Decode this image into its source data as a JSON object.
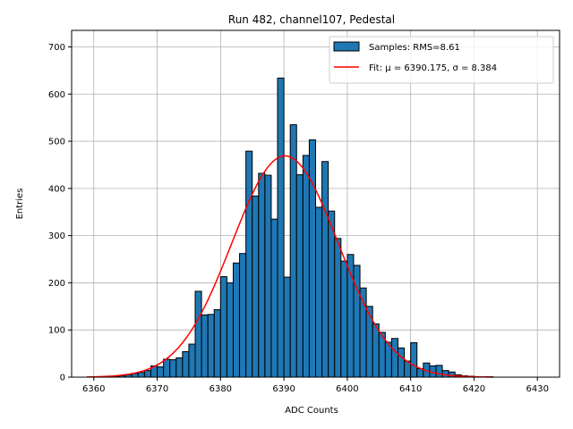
{
  "chart_data": {
    "type": "bar",
    "title": "Run 482, channel107, Pedestal",
    "xlabel": "ADC Counts",
    "ylabel": "Entries",
    "xlim": [
      6356.5,
      6433.5
    ],
    "ylim": [
      0,
      735
    ],
    "x_ticks": [
      6360,
      6370,
      6380,
      6390,
      6400,
      6410,
      6420,
      6430
    ],
    "y_ticks": [
      0,
      100,
      200,
      300,
      400,
      500,
      600,
      700
    ],
    "grid": true,
    "legend_position": "top-right",
    "bin_width": 1,
    "series": [
      {
        "name": "Samples: RMS=8.61",
        "kind": "histogram",
        "color": "#1f77b4",
        "bins": [
          6359,
          6360,
          6361,
          6362,
          6363,
          6364,
          6365,
          6366,
          6367,
          6368,
          6369,
          6370,
          6371,
          6372,
          6373,
          6374,
          6375,
          6376,
          6377,
          6378,
          6379,
          6380,
          6381,
          6382,
          6383,
          6384,
          6385,
          6386,
          6387,
          6388,
          6389,
          6390,
          6391,
          6392,
          6393,
          6394,
          6395,
          6396,
          6397,
          6398,
          6399,
          6400,
          6401,
          6402,
          6403,
          6404,
          6405,
          6406,
          6407,
          6408,
          6409,
          6410,
          6411,
          6412,
          6413,
          6414,
          6415,
          6416,
          6417,
          6418,
          6419,
          6420,
          6421,
          6422
        ],
        "values": [
          1,
          0,
          1,
          2,
          2,
          3,
          5,
          8,
          10,
          14,
          24,
          22,
          38,
          37,
          41,
          54,
          70,
          182,
          132,
          133,
          143,
          213,
          200,
          242,
          262,
          479,
          384,
          432,
          428,
          335,
          634,
          212,
          535,
          429,
          470,
          503,
          360,
          457,
          352,
          294,
          246,
          260,
          237,
          189,
          150,
          113,
          95,
          74,
          82,
          62,
          34,
          73,
          18,
          30,
          24,
          25,
          14,
          11,
          5,
          3,
          2,
          1,
          1,
          1
        ]
      },
      {
        "name": "Fit: μ = 6390.175, σ = 8.384",
        "kind": "gaussian-fit",
        "color": "#ff0000",
        "mu": 6390.175,
        "sigma": 8.384,
        "amplitude": 469,
        "x_range": [
          6359,
          6423
        ]
      }
    ]
  }
}
